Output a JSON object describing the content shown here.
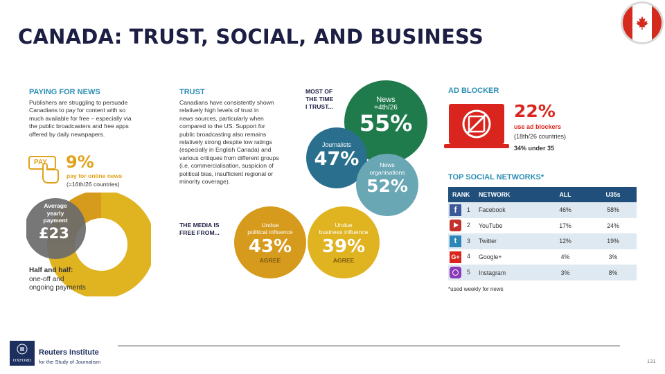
{
  "title": "CANADA: TRUST, SOCIAL, AND BUSINESS",
  "flag_icon": "canada-flag-icon",
  "paying": {
    "heading": "PAYING FOR NEWS",
    "lines": [
      "Publishers are struggling to persuade",
      "Canadians to pay for content with so",
      "much available for free – especially via",
      "the public broadcasters and free apps",
      "offered by daily newspapers."
    ],
    "pay_label": "PAY",
    "pct": "9%",
    "pct_caption": "pay for online news",
    "pct_rank": "(=16th/26 countries)",
    "avg_label_1": "Average",
    "avg_label_2": "yearly",
    "avg_label_3": "payment",
    "avg_value": "£23",
    "half_1": "Half and half:",
    "half_2": "one-off and",
    "half_3": "ongoing payments"
  },
  "trust": {
    "heading": "TRUST",
    "lines": [
      "Canadians have consistently shown",
      "relatively high levels of trust in",
      "news sources, particularly when",
      "compared to the US. Support for",
      "public broadcasting also remains",
      "relatively strong despite low ratings",
      "(especially in English Canada) and",
      "various critiques from different groups",
      "(i.e. commercialisation, suspicion of",
      "political bias, insufficient regional or",
      "minority coverage)."
    ],
    "most_1": "MOST OF",
    "most_2": "THE TIME",
    "most_3": "I TRUST...",
    "news_label": "News",
    "news_rank": "=4th/26",
    "news_pct": "55%",
    "journalists_label": "Journalists",
    "journalists_pct": "47%",
    "orgs_label_1": "News",
    "orgs_label_2": "organisations",
    "orgs_pct": "52%",
    "free_1": "THE MEDIA IS",
    "free_2": "FREE FROM...",
    "pol_1": "Undue",
    "pol_2": "political influence",
    "pol_pct": "43%",
    "pol_agree": "AGREE",
    "bus_1": "Undue",
    "bus_2": "business influence",
    "bus_pct": "39%",
    "bus_agree": "AGREE"
  },
  "adblock": {
    "heading": "AD BLOCKER",
    "pct": "22%",
    "caption": "use ad blockers",
    "rank": "(18th/26 countries)",
    "under": "34% under 35"
  },
  "social": {
    "heading": "TOP SOCIAL NETWORKS*",
    "columns": [
      "RANK",
      "NETWORK",
      "ALL",
      "U35s"
    ],
    "rows": [
      {
        "icon": "facebook-icon",
        "rank": "1",
        "network": "Facebook",
        "all": "46%",
        "u35": "58%"
      },
      {
        "icon": "youtube-icon",
        "rank": "2",
        "network": "YouTube",
        "all": "17%",
        "u35": "24%"
      },
      {
        "icon": "twitter-icon",
        "rank": "3",
        "network": "Twitter",
        "all": "12%",
        "u35": "19%"
      },
      {
        "icon": "google-plus-icon",
        "rank": "4",
        "network": "Google+",
        "all": "4%",
        "u35": "3%"
      },
      {
        "icon": "instagram-icon",
        "rank": "5",
        "network": "Instagram",
        "all": "3%",
        "u35": "8%"
      }
    ],
    "footnote": "*used weekly for news"
  },
  "footer": {
    "org_1": "Reuters Institute",
    "org_2": "for the Study of Journalism",
    "oxford": "OXFORD",
    "page": "131"
  },
  "colors": {
    "title": "#1c1f43",
    "accent_blue": "#2a8db5",
    "green": "#1f7a4c",
    "teal": "#2a6f8e",
    "light_teal": "#6aa7b5",
    "gold": "#e0b321",
    "dark_gold": "#d69a1c",
    "red": "#d9251d",
    "grey": "#6b6b6b"
  }
}
